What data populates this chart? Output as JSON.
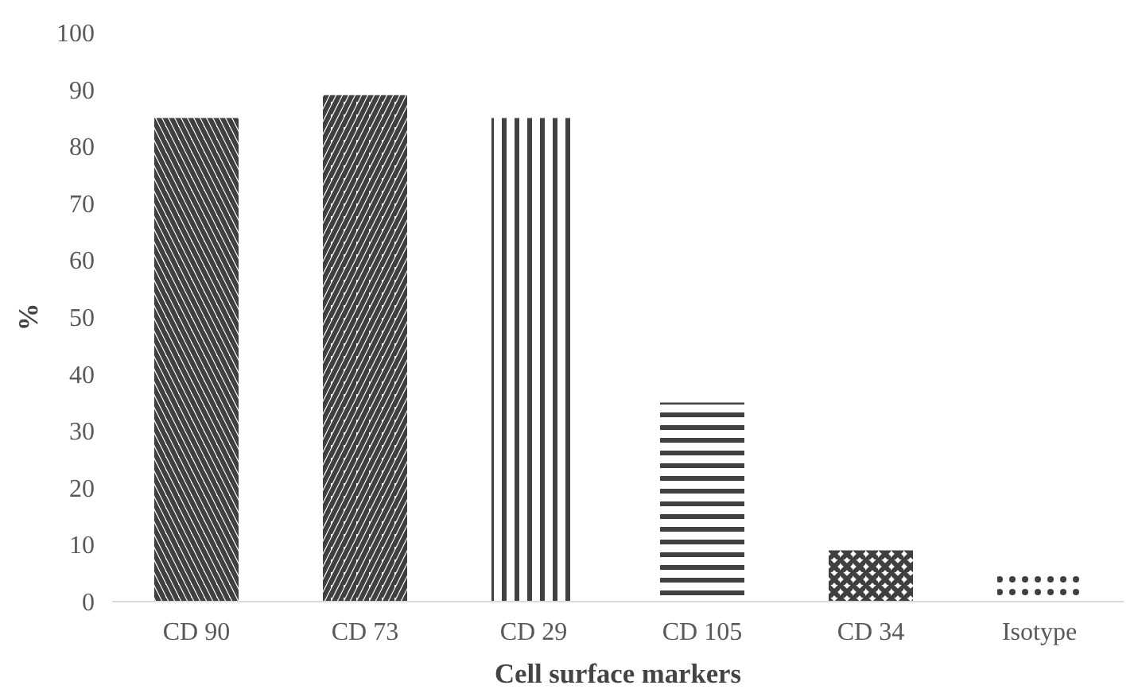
{
  "chart_data": {
    "type": "bar",
    "xlabel": "Cell surface markers",
    "ylabel": "%",
    "categories": [
      "CD 90",
      "CD 73",
      "CD 29",
      "CD 105",
      "CD 34",
      "Isotype"
    ],
    "values": [
      85,
      89,
      85,
      35,
      9,
      5
    ],
    "colors": [
      "#404040",
      "#404040",
      "#404040",
      "#404040",
      "#404040",
      "#404040"
    ],
    "ylim": [
      0,
      100
    ],
    "yticks": [
      0,
      10,
      20,
      30,
      40,
      50,
      60,
      70,
      80,
      90,
      100
    ],
    "grid": false
  }
}
